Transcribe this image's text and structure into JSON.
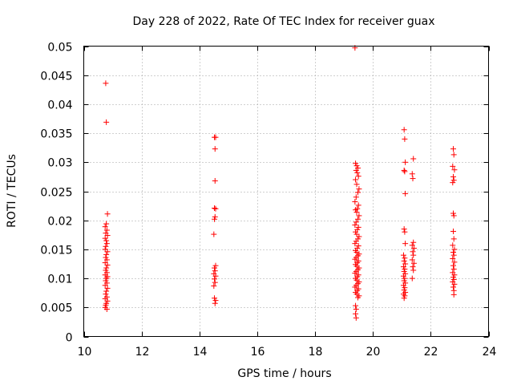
{
  "chart_data": {
    "type": "scatter",
    "title": "Day 228 of 2022, Rate Of TEC Index for receiver guax",
    "xlabel": "GPS time / hours",
    "ylabel": "ROTI / TECUs",
    "xlim": [
      10,
      24
    ],
    "ylim": [
      0,
      0.05
    ],
    "xticks": [
      10,
      12,
      14,
      16,
      18,
      20,
      22,
      24
    ],
    "xtick_labels": [
      "10",
      "12",
      "14",
      "16",
      "18",
      "20",
      "22",
      "24"
    ],
    "yticks": [
      0,
      0.005,
      0.01,
      0.015,
      0.02,
      0.025,
      0.03,
      0.035,
      0.04,
      0.045,
      0.05
    ],
    "ytick_labels": [
      "0",
      "0.005",
      "0.01",
      "0.015",
      "0.02",
      "0.025",
      "0.03",
      "0.035",
      "0.04",
      "0.045",
      "0.05"
    ],
    "grid": true,
    "marker": "+",
    "color": "#ff0000",
    "series": [
      {
        "name": "ROTI",
        "points": [
          [
            10.76,
            0.0436
          ],
          [
            10.78,
            0.0369
          ],
          [
            10.82,
            0.0211
          ],
          [
            10.78,
            0.0194
          ],
          [
            10.74,
            0.0189
          ],
          [
            10.8,
            0.0183
          ],
          [
            10.76,
            0.0178
          ],
          [
            10.82,
            0.0174
          ],
          [
            10.74,
            0.0169
          ],
          [
            10.78,
            0.0165
          ],
          [
            10.8,
            0.016
          ],
          [
            10.76,
            0.0155
          ],
          [
            10.74,
            0.015
          ],
          [
            10.82,
            0.0146
          ],
          [
            10.78,
            0.0141
          ],
          [
            10.76,
            0.0136
          ],
          [
            10.8,
            0.0132
          ],
          [
            10.74,
            0.0127
          ],
          [
            10.82,
            0.0123
          ],
          [
            10.78,
            0.0118
          ],
          [
            10.76,
            0.0114
          ],
          [
            10.8,
            0.011
          ],
          [
            10.74,
            0.0106
          ],
          [
            10.82,
            0.0103
          ],
          [
            10.78,
            0.01
          ],
          [
            10.76,
            0.0096
          ],
          [
            10.8,
            0.0092
          ],
          [
            10.74,
            0.0088
          ],
          [
            10.82,
            0.0083
          ],
          [
            10.78,
            0.0078
          ],
          [
            10.76,
            0.0073
          ],
          [
            10.8,
            0.0068
          ],
          [
            10.74,
            0.0065
          ],
          [
            10.82,
            0.0061
          ],
          [
            10.78,
            0.0057
          ],
          [
            10.76,
            0.0054
          ],
          [
            10.74,
            0.005
          ],
          [
            10.8,
            0.0047
          ],
          [
            14.52,
            0.0343
          ],
          [
            14.56,
            0.0343
          ],
          [
            14.54,
            0.0323
          ],
          [
            14.54,
            0.0268
          ],
          [
            14.52,
            0.0221
          ],
          [
            14.56,
            0.022
          ],
          [
            14.54,
            0.0206
          ],
          [
            14.52,
            0.0202
          ],
          [
            14.5,
            0.0176
          ],
          [
            14.56,
            0.0122
          ],
          [
            14.52,
            0.0118
          ],
          [
            14.54,
            0.0113
          ],
          [
            14.5,
            0.0108
          ],
          [
            14.56,
            0.0104
          ],
          [
            14.52,
            0.0099
          ],
          [
            14.54,
            0.0093
          ],
          [
            14.5,
            0.0087
          ],
          [
            14.52,
            0.0066
          ],
          [
            14.56,
            0.0062
          ],
          [
            14.54,
            0.0057
          ],
          [
            19.38,
            0.0497
          ],
          [
            19.4,
            0.0298
          ],
          [
            19.44,
            0.0294
          ],
          [
            19.48,
            0.029
          ],
          [
            19.42,
            0.0286
          ],
          [
            19.46,
            0.0282
          ],
          [
            19.5,
            0.0276
          ],
          [
            19.4,
            0.027
          ],
          [
            19.44,
            0.0262
          ],
          [
            19.52,
            0.0254
          ],
          [
            19.48,
            0.0248
          ],
          [
            19.42,
            0.024
          ],
          [
            19.38,
            0.0232
          ],
          [
            19.5,
            0.0226
          ],
          [
            19.46,
            0.022
          ],
          [
            19.4,
            0.0218
          ],
          [
            19.44,
            0.0214
          ],
          [
            19.52,
            0.0208
          ],
          [
            19.48,
            0.0202
          ],
          [
            19.42,
            0.0197
          ],
          [
            19.38,
            0.0192
          ],
          [
            19.5,
            0.0188
          ],
          [
            19.46,
            0.0184
          ],
          [
            19.4,
            0.018
          ],
          [
            19.44,
            0.0176
          ],
          [
            19.52,
            0.0172
          ],
          [
            19.48,
            0.0168
          ],
          [
            19.42,
            0.0164
          ],
          [
            19.38,
            0.016
          ],
          [
            19.5,
            0.0156
          ],
          [
            19.46,
            0.0152
          ],
          [
            19.4,
            0.0148
          ],
          [
            19.44,
            0.0145
          ],
          [
            19.52,
            0.0142
          ],
          [
            19.48,
            0.0139
          ],
          [
            19.42,
            0.0136
          ],
          [
            19.38,
            0.0133
          ],
          [
            19.5,
            0.013
          ],
          [
            19.46,
            0.0127
          ],
          [
            19.4,
            0.0124
          ],
          [
            19.44,
            0.0121
          ],
          [
            19.52,
            0.0118
          ],
          [
            19.48,
            0.0115
          ],
          [
            19.42,
            0.0112
          ],
          [
            19.38,
            0.0109
          ],
          [
            19.5,
            0.0106
          ],
          [
            19.46,
            0.0103
          ],
          [
            19.4,
            0.01
          ],
          [
            19.44,
            0.0097
          ],
          [
            19.52,
            0.0094
          ],
          [
            19.48,
            0.0091
          ],
          [
            19.42,
            0.0088
          ],
          [
            19.38,
            0.0085
          ],
          [
            19.5,
            0.0082
          ],
          [
            19.46,
            0.0079
          ],
          [
            19.4,
            0.0076
          ],
          [
            19.44,
            0.0073
          ],
          [
            19.52,
            0.007
          ],
          [
            19.48,
            0.0067
          ],
          [
            19.4,
            0.0053
          ],
          [
            19.42,
            0.0047
          ],
          [
            19.4,
            0.0039
          ],
          [
            19.42,
            0.0032
          ],
          [
            21.08,
            0.0356
          ],
          [
            21.1,
            0.034
          ],
          [
            21.12,
            0.03
          ],
          [
            21.08,
            0.0286
          ],
          [
            21.1,
            0.0284
          ],
          [
            21.12,
            0.0246
          ],
          [
            21.08,
            0.0185
          ],
          [
            21.1,
            0.018
          ],
          [
            21.12,
            0.016
          ],
          [
            21.06,
            0.014
          ],
          [
            21.1,
            0.0135
          ],
          [
            21.08,
            0.013
          ],
          [
            21.12,
            0.0125
          ],
          [
            21.06,
            0.012
          ],
          [
            21.1,
            0.0116
          ],
          [
            21.08,
            0.0112
          ],
          [
            21.12,
            0.0108
          ],
          [
            21.06,
            0.0104
          ],
          [
            21.1,
            0.01
          ],
          [
            21.08,
            0.0096
          ],
          [
            21.12,
            0.0092
          ],
          [
            21.06,
            0.0088
          ],
          [
            21.1,
            0.0084
          ],
          [
            21.08,
            0.008
          ],
          [
            21.12,
            0.0076
          ],
          [
            21.06,
            0.0073
          ],
          [
            21.1,
            0.007
          ],
          [
            21.08,
            0.0066
          ],
          [
            21.4,
            0.0306
          ],
          [
            21.36,
            0.028
          ],
          [
            21.38,
            0.0272
          ],
          [
            21.4,
            0.0162
          ],
          [
            21.36,
            0.0157
          ],
          [
            21.42,
            0.0152
          ],
          [
            21.38,
            0.0146
          ],
          [
            21.4,
            0.014
          ],
          [
            21.36,
            0.0132
          ],
          [
            21.42,
            0.0126
          ],
          [
            21.38,
            0.012
          ],
          [
            21.4,
            0.0114
          ],
          [
            21.36,
            0.01
          ],
          [
            22.78,
            0.0323
          ],
          [
            22.8,
            0.0313
          ],
          [
            22.76,
            0.0293
          ],
          [
            22.82,
            0.0287
          ],
          [
            22.78,
            0.0275
          ],
          [
            22.8,
            0.0269
          ],
          [
            22.76,
            0.0265
          ],
          [
            22.78,
            0.0212
          ],
          [
            22.8,
            0.0208
          ],
          [
            22.78,
            0.0181
          ],
          [
            22.8,
            0.0168
          ],
          [
            22.76,
            0.0157
          ],
          [
            22.82,
            0.015
          ],
          [
            22.78,
            0.0145
          ],
          [
            22.8,
            0.014
          ],
          [
            22.76,
            0.0134
          ],
          [
            22.82,
            0.0128
          ],
          [
            22.78,
            0.0122
          ],
          [
            22.8,
            0.0116
          ],
          [
            22.76,
            0.011
          ],
          [
            22.82,
            0.0106
          ],
          [
            22.78,
            0.0102
          ],
          [
            22.8,
            0.0098
          ],
          [
            22.76,
            0.0094
          ],
          [
            22.82,
            0.009
          ],
          [
            22.78,
            0.0085
          ],
          [
            22.8,
            0.0079
          ],
          [
            22.8,
            0.0072
          ]
        ]
      }
    ]
  }
}
